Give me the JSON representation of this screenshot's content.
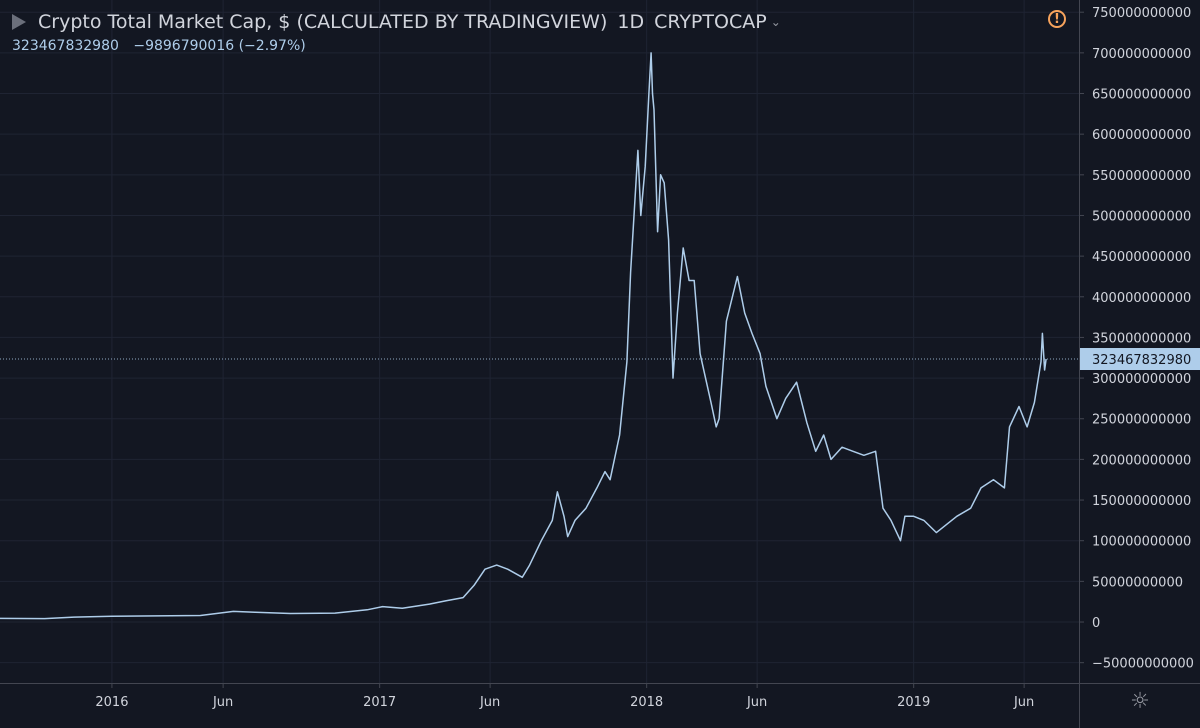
{
  "header": {
    "title": "Crypto Total Market Cap, $ (CALCULATED BY TRADINGVIEW)",
    "interval": "1D",
    "symbol": "CRYPTOCAP",
    "last_value": "323467832980",
    "change": "−9896790016 (−2.97%)"
  },
  "icons": {
    "flag": "flag-icon",
    "warning": "warning-icon",
    "settings": "settings-gear-icon",
    "symbol_menu": "chevron-down-icon"
  },
  "colors": {
    "background": "#131722",
    "line": "#aecdea",
    "grid": "#1f2433",
    "text": "#d1d4dc",
    "label_bg": "#aecdea",
    "warning": "#f7a35c"
  },
  "chart_data": {
    "type": "line",
    "title": "Crypto Total Market Cap, $ (CALCULATED BY TRADINGVIEW)",
    "xlabel": "",
    "ylabel": "",
    "ylim": [
      -75000000000,
      765000000000
    ],
    "xlim": [
      "2015-08-01",
      "2019-08-15"
    ],
    "grid": true,
    "x_ticks": [
      {
        "label": "2016",
        "date": "2016-01-01"
      },
      {
        "label": "Jun",
        "date": "2016-06-01"
      },
      {
        "label": "2017",
        "date": "2017-01-01"
      },
      {
        "label": "Jun",
        "date": "2017-06-01"
      },
      {
        "label": "2018",
        "date": "2018-01-01"
      },
      {
        "label": "Jun",
        "date": "2018-06-01"
      },
      {
        "label": "2019",
        "date": "2019-01-01"
      },
      {
        "label": "Jun",
        "date": "2019-06-01"
      }
    ],
    "y_ticks": [
      {
        "label": "750000000000",
        "value": 750000000000
      },
      {
        "label": "700000000000",
        "value": 700000000000
      },
      {
        "label": "650000000000",
        "value": 650000000000
      },
      {
        "label": "600000000000",
        "value": 600000000000
      },
      {
        "label": "550000000000",
        "value": 550000000000
      },
      {
        "label": "500000000000",
        "value": 500000000000
      },
      {
        "label": "450000000000",
        "value": 450000000000
      },
      {
        "label": "400000000000",
        "value": 400000000000
      },
      {
        "label": "350000000000",
        "value": 350000000000
      },
      {
        "label": "300000000000",
        "value": 300000000000
      },
      {
        "label": "250000000000",
        "value": 250000000000
      },
      {
        "label": "200000000000",
        "value": 200000000000
      },
      {
        "label": "150000000000",
        "value": 150000000000
      },
      {
        "label": "100000000000",
        "value": 100000000000
      },
      {
        "label": "50000000000",
        "value": 50000000000
      },
      {
        "label": "0",
        "value": 0
      },
      {
        "label": "−50000000000",
        "value": -50000000000
      }
    ],
    "last_price_label": "323467832980",
    "last_price": 323467832980,
    "series": [
      {
        "points": [
          [
            "2015-08-01",
            4500000000
          ],
          [
            "2015-10-01",
            4200000000
          ],
          [
            "2015-11-10",
            6000000000
          ],
          [
            "2016-01-01",
            7000000000
          ],
          [
            "2016-03-01",
            7500000000
          ],
          [
            "2016-05-01",
            8000000000
          ],
          [
            "2016-06-15",
            13000000000
          ],
          [
            "2016-07-15",
            12000000000
          ],
          [
            "2016-09-01",
            10500000000
          ],
          [
            "2016-11-01",
            11000000000
          ],
          [
            "2016-12-15",
            15000000000
          ],
          [
            "2017-01-05",
            19000000000
          ],
          [
            "2017-02-01",
            17000000000
          ],
          [
            "2017-03-10",
            22000000000
          ],
          [
            "2017-04-01",
            26000000000
          ],
          [
            "2017-04-25",
            30000000000
          ],
          [
            "2017-05-10",
            45000000000
          ],
          [
            "2017-05-25",
            65000000000
          ],
          [
            "2017-06-10",
            70000000000
          ],
          [
            "2017-06-25",
            65000000000
          ],
          [
            "2017-07-15",
            55000000000
          ],
          [
            "2017-07-25",
            70000000000
          ],
          [
            "2017-08-10",
            100000000000
          ],
          [
            "2017-08-25",
            125000000000
          ],
          [
            "2017-09-01",
            160000000000
          ],
          [
            "2017-09-10",
            130000000000
          ],
          [
            "2017-09-15",
            105000000000
          ],
          [
            "2017-09-25",
            125000000000
          ],
          [
            "2017-10-10",
            140000000000
          ],
          [
            "2017-10-25",
            165000000000
          ],
          [
            "2017-11-05",
            185000000000
          ],
          [
            "2017-11-12",
            175000000000
          ],
          [
            "2017-11-25",
            230000000000
          ],
          [
            "2017-12-05",
            320000000000
          ],
          [
            "2017-12-10",
            430000000000
          ],
          [
            "2017-12-20",
            580000000000
          ],
          [
            "2017-12-24",
            500000000000
          ],
          [
            "2017-12-30",
            560000000000
          ],
          [
            "2018-01-04",
            650000000000
          ],
          [
            "2018-01-07",
            700000000000
          ],
          [
            "2018-01-09",
            650000000000
          ],
          [
            "2018-01-11",
            630000000000
          ],
          [
            "2018-01-16",
            480000000000
          ],
          [
            "2018-01-20",
            550000000000
          ],
          [
            "2018-01-25",
            540000000000
          ],
          [
            "2018-01-31",
            470000000000
          ],
          [
            "2018-02-06",
            300000000000
          ],
          [
            "2018-02-12",
            380000000000
          ],
          [
            "2018-02-20",
            460000000000
          ],
          [
            "2018-02-28",
            420000000000
          ],
          [
            "2018-03-07",
            420000000000
          ],
          [
            "2018-03-15",
            330000000000
          ],
          [
            "2018-03-30",
            270000000000
          ],
          [
            "2018-04-06",
            240000000000
          ],
          [
            "2018-04-10",
            250000000000
          ],
          [
            "2018-04-20",
            370000000000
          ],
          [
            "2018-05-05",
            425000000000
          ],
          [
            "2018-05-15",
            380000000000
          ],
          [
            "2018-05-25",
            355000000000
          ],
          [
            "2018-06-05",
            330000000000
          ],
          [
            "2018-06-13",
            290000000000
          ],
          [
            "2018-06-28",
            250000000000
          ],
          [
            "2018-07-10",
            275000000000
          ],
          [
            "2018-07-25",
            295000000000
          ],
          [
            "2018-08-08",
            245000000000
          ],
          [
            "2018-08-20",
            210000000000
          ],
          [
            "2018-08-31",
            230000000000
          ],
          [
            "2018-09-10",
            200000000000
          ],
          [
            "2018-09-25",
            215000000000
          ],
          [
            "2018-10-10",
            210000000000
          ],
          [
            "2018-10-25",
            205000000000
          ],
          [
            "2018-11-10",
            210000000000
          ],
          [
            "2018-11-20",
            140000000000
          ],
          [
            "2018-12-01",
            125000000000
          ],
          [
            "2018-12-14",
            100000000000
          ],
          [
            "2018-12-20",
            130000000000
          ],
          [
            "2019-01-01",
            130000000000
          ],
          [
            "2019-01-15",
            125000000000
          ],
          [
            "2019-02-01",
            110000000000
          ],
          [
            "2019-02-15",
            120000000000
          ],
          [
            "2019-03-01",
            130000000000
          ],
          [
            "2019-03-20",
            140000000000
          ],
          [
            "2019-04-03",
            165000000000
          ],
          [
            "2019-04-20",
            175000000000
          ],
          [
            "2019-05-05",
            165000000000
          ],
          [
            "2019-05-12",
            240000000000
          ],
          [
            "2019-05-25",
            265000000000
          ],
          [
            "2019-06-05",
            240000000000
          ],
          [
            "2019-06-15",
            270000000000
          ],
          [
            "2019-06-24",
            320000000000
          ],
          [
            "2019-06-26",
            355000000000
          ],
          [
            "2019-06-29",
            310000000000
          ],
          [
            "2019-07-01",
            323467832980
          ]
        ]
      }
    ]
  }
}
